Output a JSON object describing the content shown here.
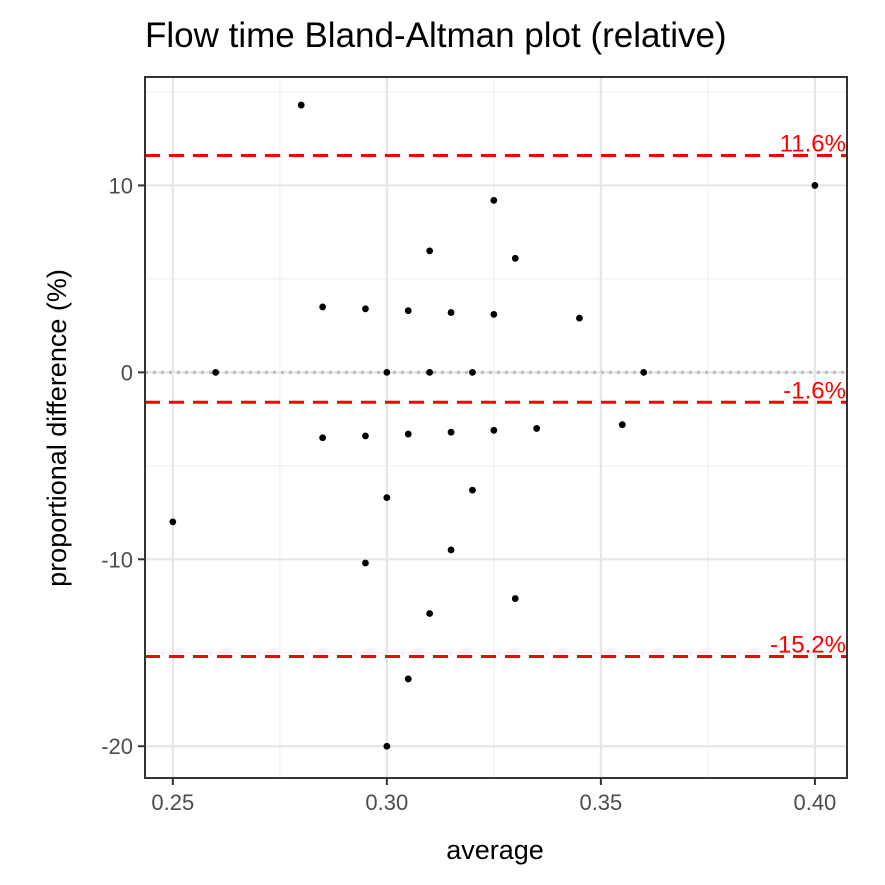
{
  "chart_data": {
    "type": "scatter",
    "title": "Flow time   Bland-Altman plot (relative)",
    "xlabel": "average",
    "ylabel": "proportional difference (%)",
    "xlim": [
      0.2435,
      0.4075
    ],
    "ylim": [
      -21.7,
      15.8
    ],
    "x_ticks": [
      0.25,
      0.3,
      0.35,
      0.4
    ],
    "x_tick_labels": [
      "0.25",
      "0.30",
      "0.35",
      "0.40"
    ],
    "y_ticks": [
      -20,
      -10,
      0,
      10
    ],
    "y_tick_labels": [
      "-20",
      "-10",
      "0",
      "10"
    ],
    "grid": true,
    "zero_line": {
      "y": 0,
      "style": "dotted",
      "color": "#bbbbbb"
    },
    "reference_lines": [
      {
        "y": 11.6,
        "label": "11.6%",
        "color": "#ff0000",
        "style": "dashed"
      },
      {
        "y": -1.6,
        "label": "-1.6%",
        "color": "#ff0000",
        "style": "dashed"
      },
      {
        "y": -15.2,
        "label": "-15.2%",
        "color": "#ff0000",
        "style": "dashed"
      }
    ],
    "points": [
      {
        "x": 0.25,
        "y": -8.0
      },
      {
        "x": 0.26,
        "y": 0.0
      },
      {
        "x": 0.28,
        "y": 14.3
      },
      {
        "x": 0.285,
        "y": 3.5
      },
      {
        "x": 0.285,
        "y": -3.5
      },
      {
        "x": 0.295,
        "y": 3.4
      },
      {
        "x": 0.295,
        "y": -3.4
      },
      {
        "x": 0.295,
        "y": -10.2
      },
      {
        "x": 0.3,
        "y": 0.0
      },
      {
        "x": 0.3,
        "y": -6.7
      },
      {
        "x": 0.3,
        "y": -20.0
      },
      {
        "x": 0.305,
        "y": 3.3
      },
      {
        "x": 0.305,
        "y": -3.3
      },
      {
        "x": 0.305,
        "y": -16.4
      },
      {
        "x": 0.31,
        "y": 6.5
      },
      {
        "x": 0.31,
        "y": 0.0
      },
      {
        "x": 0.31,
        "y": -12.9
      },
      {
        "x": 0.315,
        "y": 3.2
      },
      {
        "x": 0.315,
        "y": -3.2
      },
      {
        "x": 0.315,
        "y": -9.5
      },
      {
        "x": 0.32,
        "y": 0.0
      },
      {
        "x": 0.32,
        "y": -6.3
      },
      {
        "x": 0.325,
        "y": 9.2
      },
      {
        "x": 0.325,
        "y": 3.1
      },
      {
        "x": 0.325,
        "y": -3.1
      },
      {
        "x": 0.33,
        "y": 6.1
      },
      {
        "x": 0.33,
        "y": -12.1
      },
      {
        "x": 0.335,
        "y": -3.0
      },
      {
        "x": 0.345,
        "y": 2.9
      },
      {
        "x": 0.355,
        "y": -2.8
      },
      {
        "x": 0.36,
        "y": 0.0
      },
      {
        "x": 0.4,
        "y": 10.0
      }
    ]
  }
}
